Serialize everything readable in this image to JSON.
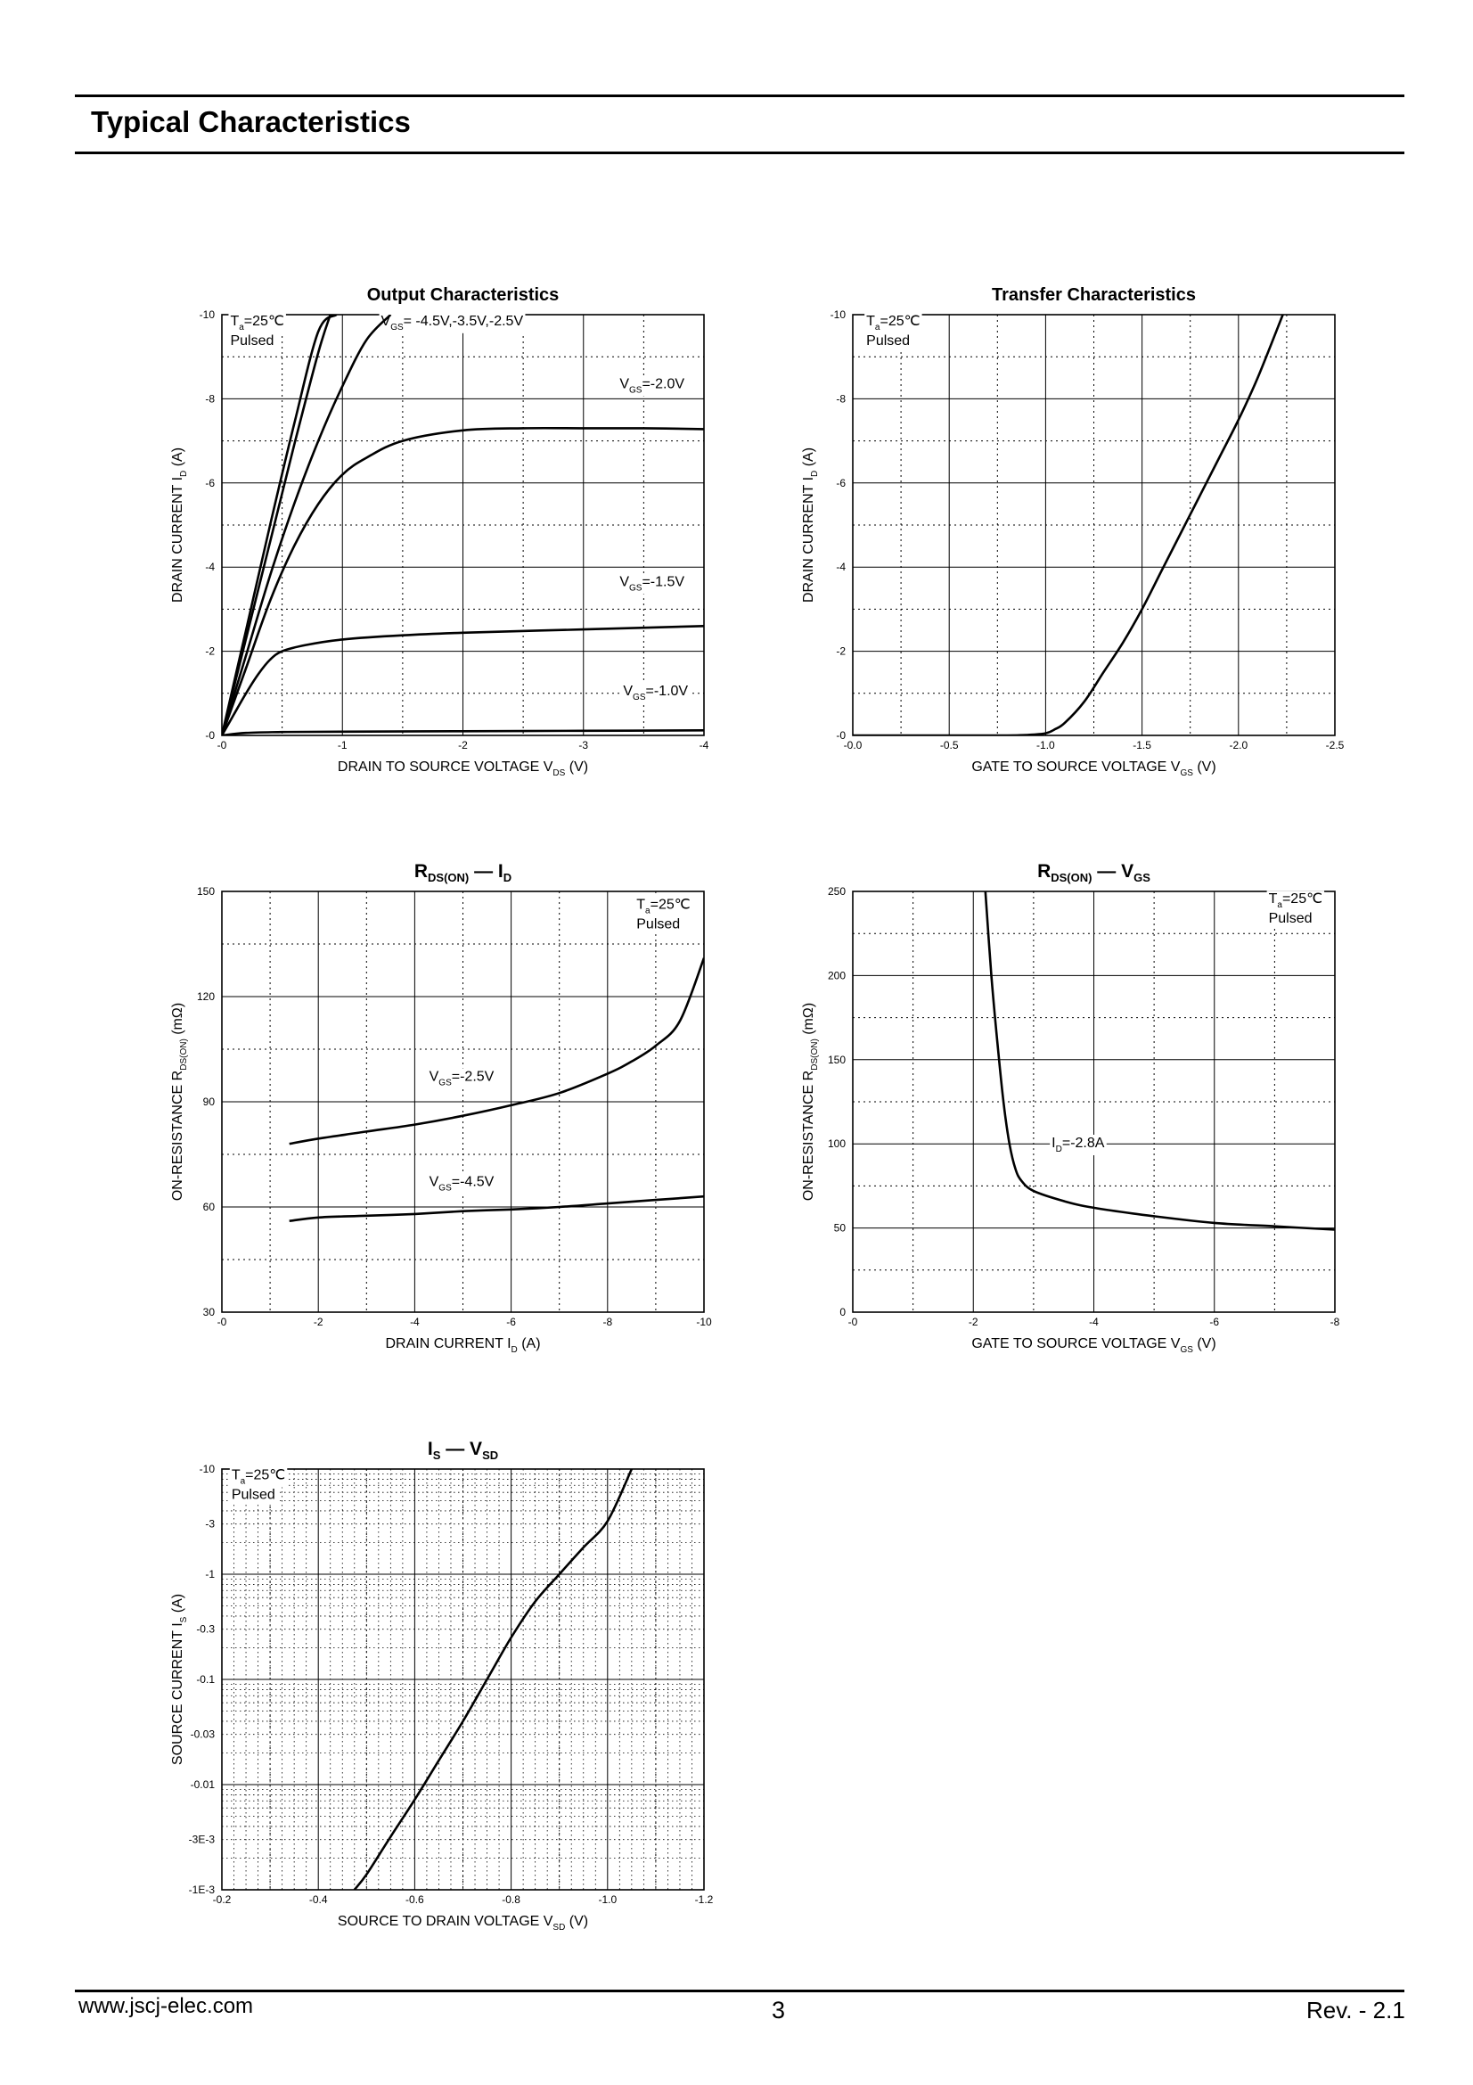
{
  "header": {
    "title": "Typical Characteristics"
  },
  "footer": {
    "website": "www.jscj-elec.com",
    "page_number": "3",
    "revision": "Rev. - 2.1"
  },
  "chart_data": [
    {
      "type": "line",
      "title": "Output Characteristics",
      "xlabel": "DRAIN TO SOURCE VOLTAGE V DS (V)",
      "ylabel": "DRAIN CURRENT I D (A)",
      "xlim": [
        0,
        -4
      ],
      "ylim": [
        0,
        -10
      ],
      "xticks": [
        0,
        -1,
        -2,
        -3,
        -4
      ],
      "xtick_labels": [
        "-0",
        "-1",
        "-2",
        "-3",
        "-4"
      ],
      "yticks": [
        0,
        -2,
        -4,
        -6,
        -8,
        -10
      ],
      "ytick_labels": [
        "-0",
        "-2",
        "-4",
        "-6",
        "-8",
        "-10"
      ],
      "annotations": [
        {
          "lines": [
            [
              "T",
              "a",
              "=25℃"
            ],
            [
              "Pulsed"
            ]
          ],
          "x": -0.07,
          "y": -9.75
        },
        {
          "lines": [
            [
              "V",
              "GS",
              "= -4.5V,-3.5V,-2.5V"
            ]
          ],
          "x": -1.32,
          "y": -9.75
        },
        {
          "lines": [
            [
              "V",
              "GS",
              "=-2.0V"
            ]
          ],
          "x": -3.3,
          "y": -8.25
        },
        {
          "lines": [
            [
              "V",
              "GS",
              "=-1.5V"
            ]
          ],
          "x": -3.3,
          "y": -3.55
        },
        {
          "lines": [
            [
              "V",
              "GS",
              "=-1.0V"
            ]
          ],
          "x": -3.33,
          "y": -0.95
        }
      ],
      "series": [
        {
          "name": "",
          "x": [
            0,
            -0.2,
            -0.4,
            -0.6,
            -0.8,
            -0.95
          ],
          "y": [
            0,
            -2.5,
            -5,
            -7.4,
            -9.6,
            -10
          ]
        },
        {
          "name": "",
          "x": [
            0,
            -0.2,
            -0.4,
            -0.6,
            -0.8,
            -0.9
          ],
          "y": [
            0,
            -2.3,
            -4.6,
            -6.9,
            -9.1,
            -10
          ]
        },
        {
          "name": "",
          "x": [
            0,
            -0.2,
            -0.4,
            -0.6,
            -0.8,
            -1.0,
            -1.2,
            -1.4
          ],
          "y": [
            0,
            -1.9,
            -3.8,
            -5.5,
            -7,
            -8.3,
            -9.4,
            -10
          ]
        },
        {
          "name": "",
          "x": [
            0,
            -0.2,
            -0.4,
            -0.6,
            -0.8,
            -1.0,
            -1.2,
            -1.5,
            -2.0,
            -2.5,
            -3.0,
            -3.5,
            -4.0
          ],
          "y": [
            0,
            -1.6,
            -3.2,
            -4.5,
            -5.5,
            -6.2,
            -6.6,
            -7.0,
            -7.25,
            -7.3,
            -7.3,
            -7.3,
            -7.28
          ]
        },
        {
          "name": "",
          "x": [
            0,
            -0.1,
            -0.2,
            -0.3,
            -0.4,
            -0.5,
            -0.7,
            -1.0,
            -1.5,
            -2.0,
            -3.0,
            -4.0
          ],
          "y": [
            0,
            -0.5,
            -1.0,
            -1.45,
            -1.8,
            -2.0,
            -2.15,
            -2.28,
            -2.38,
            -2.44,
            -2.52,
            -2.6
          ]
        },
        {
          "name": "",
          "x": [
            0,
            -0.2,
            -0.5,
            -1.0,
            -2.0,
            -3.0,
            -4.0
          ],
          "y": [
            0,
            -0.06,
            -0.08,
            -0.09,
            -0.1,
            -0.11,
            -0.12
          ]
        }
      ]
    },
    {
      "type": "line",
      "title": "Transfer Characteristics",
      "xlabel": "GATE TO SOURCE VOLTAGE V GS (V)",
      "ylabel": "DRAIN CURRENT I D (A)",
      "xlim": [
        0,
        -2.5
      ],
      "ylim": [
        0,
        -10
      ],
      "xticks": [
        0,
        -0.5,
        -1.0,
        -1.5,
        -2.0,
        -2.5
      ],
      "xtick_labels": [
        "-0.0",
        "-0.5",
        "-1.0",
        "-1.5",
        "-2.0",
        "-2.5"
      ],
      "yticks": [
        0,
        -2,
        -4,
        -6,
        -8,
        -10
      ],
      "ytick_labels": [
        "-0",
        "-2",
        "-4",
        "-6",
        "-8",
        "-10"
      ],
      "annotations": [
        {
          "lines": [
            [
              "T",
              "a",
              "=25℃"
            ],
            [
              "Pulsed"
            ]
          ],
          "x": -0.07,
          "y": -9.75
        }
      ],
      "series": [
        {
          "name": "",
          "x": [
            0,
            -0.5,
            -0.8,
            -0.9,
            -1.0,
            -1.05,
            -1.1,
            -1.2,
            -1.3,
            -1.4,
            -1.5,
            -1.6,
            -1.7,
            -1.8,
            -1.9,
            -2.0,
            -2.1,
            -2.23
          ],
          "y": [
            0,
            0,
            0,
            -0.01,
            -0.05,
            -0.15,
            -0.3,
            -0.8,
            -1.5,
            -2.2,
            -3.0,
            -3.9,
            -4.8,
            -5.7,
            -6.6,
            -7.5,
            -8.5,
            -10
          ]
        }
      ]
    },
    {
      "type": "line",
      "title": "R DS(ON) — I D",
      "xlabel": "DRAIN CURRENT I D (A)",
      "ylabel": "ON-RESISTANCE R DS(ON) (mΩ)",
      "xlim": [
        0,
        -10
      ],
      "ylim": [
        30,
        150
      ],
      "xticks": [
        0,
        -2,
        -4,
        -6,
        -8,
        -10
      ],
      "xtick_labels": [
        "-0",
        "-2",
        "-4",
        "-6",
        "-8",
        "-10"
      ],
      "yticks": [
        30,
        60,
        90,
        120,
        150
      ],
      "ytick_labels": [
        "30",
        "60",
        "90",
        "120",
        "150"
      ],
      "annotations": [
        {
          "lines": [
            [
              "T",
              "a",
              "=25℃"
            ],
            [
              "Pulsed"
            ]
          ],
          "x": -8.6,
          "y": 145
        },
        {
          "lines": [
            [
              "V",
              "GS",
              "=-2.5V"
            ]
          ],
          "x": -4.3,
          "y": 96
        },
        {
          "lines": [
            [
              "V",
              "GS",
              "=-4.5V"
            ]
          ],
          "x": -4.3,
          "y": 66
        }
      ],
      "series": [
        {
          "name": "",
          "x": [
            -1.4,
            -2,
            -3,
            -4,
            -5,
            -6,
            -7,
            -8,
            -8.5,
            -9,
            -9.5,
            -10
          ],
          "y": [
            78,
            79.5,
            81.5,
            83.5,
            86,
            89,
            92.5,
            98,
            101.5,
            106,
            113,
            131
          ]
        },
        {
          "name": "",
          "x": [
            -1.4,
            -2,
            -3,
            -4,
            -5,
            -6,
            -7,
            -8,
            -9,
            -10
          ],
          "y": [
            56,
            57,
            57.5,
            58,
            58.8,
            59.3,
            60,
            61,
            62,
            63
          ]
        }
      ]
    },
    {
      "type": "line",
      "title": "R DS(ON) — V GS",
      "xlabel": "GATE TO SOURCE VOLTAGE V GS (V)",
      "ylabel": "ON-RESISTANCE R DS(ON) (mΩ)",
      "xlim": [
        0,
        -8
      ],
      "ylim": [
        0,
        250
      ],
      "xticks": [
        0,
        -2,
        -4,
        -6,
        -8
      ],
      "xtick_labels": [
        "-0",
        "-2",
        "-4",
        "-6",
        "-8"
      ],
      "yticks": [
        0,
        50,
        100,
        150,
        200,
        250
      ],
      "ytick_labels": [
        "0",
        "50",
        "100",
        "150",
        "200",
        "250"
      ],
      "annotations": [
        {
          "lines": [
            [
              "T",
              "a",
              "=25℃"
            ],
            [
              "Pulsed"
            ]
          ],
          "x": -6.9,
          "y": 243
        },
        {
          "lines": [
            [
              "I",
              "D",
              "=-2.8A"
            ]
          ],
          "x": -3.3,
          "y": 98
        }
      ],
      "series": [
        {
          "name": "",
          "x": [
            -2.2,
            -2.3,
            -2.4,
            -2.5,
            -2.6,
            -2.7,
            -2.8,
            -3.0,
            -3.5,
            -4.0,
            -5.0,
            -6.0,
            -7.0,
            -8.0
          ],
          "y": [
            250,
            200,
            160,
            125,
            100,
            85,
            78,
            72,
            66,
            62,
            57,
            53,
            51,
            49
          ]
        }
      ]
    },
    {
      "type": "line",
      "title": "I S — V SD",
      "xlabel": "SOURCE TO DRAIN VOLTAGE V SD (V)",
      "ylabel": "SOURCE CURRENT I S (A)",
      "xlim": [
        -0.2,
        -1.2
      ],
      "ylim": [
        -0.001,
        -10
      ],
      "yscale": "log",
      "xticks": [
        -0.2,
        -0.4,
        -0.6,
        -0.8,
        -1.0,
        -1.2
      ],
      "xtick_labels": [
        "-0.2",
        "-0.4",
        "-0.6",
        "-0.8",
        "-1.0",
        "-1.2"
      ],
      "yticks": [
        -0.001,
        -0.003,
        -0.01,
        -0.03,
        -0.1,
        -0.3,
        -1,
        -3,
        -10
      ],
      "ytick_labels": [
        "-1E-3",
        "-3E-3",
        "-0.01",
        "-0.03",
        "-0.1",
        "-0.3",
        "-1",
        "-3",
        "-10"
      ],
      "annotations": [
        {
          "lines": [
            [
              "T",
              "a",
              "=25℃"
            ],
            [
              "Pulsed"
            ]
          ],
          "x": -0.22,
          "y": -8
        }
      ],
      "series": [
        {
          "name": "",
          "x": [
            -0.475,
            -0.5,
            -0.55,
            -0.6,
            -0.65,
            -0.7,
            -0.75,
            -0.8,
            -0.85,
            -0.9,
            -0.95,
            -1.0,
            -1.05
          ],
          "y": [
            -0.001,
            -0.0014,
            -0.0032,
            -0.0072,
            -0.017,
            -0.04,
            -0.1,
            -0.25,
            -0.55,
            -1.0,
            -1.8,
            -3.2,
            -10
          ]
        }
      ]
    }
  ]
}
